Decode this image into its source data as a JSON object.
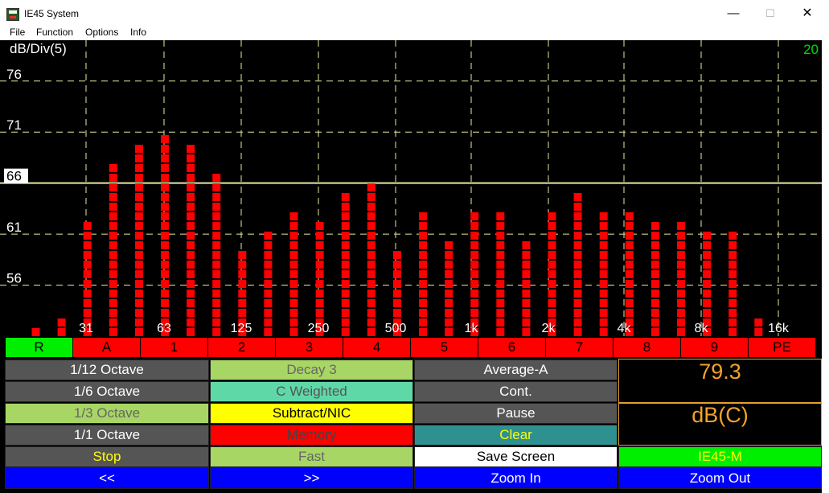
{
  "window": {
    "title": "IE45 System",
    "minimize": "—",
    "maximize": "☐",
    "close": "✕"
  },
  "menu": [
    "File",
    "Function",
    "Options",
    "Info"
  ],
  "chart_data": {
    "type": "bar",
    "ylabel": "dB/Div(5)",
    "range_label": "20",
    "y_ticks": [
      56,
      61,
      66,
      71,
      76
    ],
    "ylim": [
      51,
      80
    ],
    "reference_level": 66,
    "x_tick_labels": [
      "31",
      "63",
      "125",
      "250",
      "500",
      "1k",
      "2k",
      "4k",
      "8k",
      "16k"
    ],
    "bands": [
      "25",
      "31.5",
      "40",
      "50",
      "63",
      "80",
      "100",
      "125",
      "160",
      "200",
      "250",
      "315",
      "400",
      "500",
      "630",
      "800",
      "1k",
      "1.25k",
      "1.6k",
      "2k",
      "2.5k",
      "3.15k",
      "4k",
      "5k",
      "6.3k",
      "8k",
      "10k",
      "12.5k",
      "16k"
    ],
    "values": [
      52,
      53.5,
      62.5,
      68.5,
      70,
      71,
      70,
      67.5,
      60,
      61.5,
      64,
      62.5,
      65.5,
      66.5,
      60,
      64,
      61,
      64,
      63.5,
      61,
      64,
      65.5,
      63.5,
      63.5,
      62.5,
      62.5,
      61.5,
      61.5,
      53.5
    ],
    "bar_color": "#ff0000",
    "grid_color": "#e8e8a0",
    "reference_color": "#e8e8a0",
    "range_color": "#00dd00",
    "grid": true
  },
  "lamps": [
    {
      "label": "R",
      "color": "#00ee00"
    },
    {
      "label": "A",
      "color": "#ff0000"
    },
    {
      "label": "1",
      "color": "#ff0000"
    },
    {
      "label": "2",
      "color": "#ff0000"
    },
    {
      "label": "3",
      "color": "#ff0000"
    },
    {
      "label": "4",
      "color": "#ff0000"
    },
    {
      "label": "5",
      "color": "#ff0000"
    },
    {
      "label": "6",
      "color": "#ff0000"
    },
    {
      "label": "7",
      "color": "#ff0000"
    },
    {
      "label": "8",
      "color": "#ff0000"
    },
    {
      "label": "9",
      "color": "#ff0000"
    },
    {
      "label": "PE",
      "color": "#ff0000"
    }
  ],
  "controls": [
    [
      {
        "label": "1/12 Octave",
        "bg": "#555555",
        "fg": "#ffffff"
      },
      {
        "label": "Decay 3",
        "bg": "#a8d664",
        "fg": "#666666"
      },
      {
        "label": "Average-A",
        "bg": "#555555",
        "fg": "#ffffff"
      }
    ],
    [
      {
        "label": "1/6 Octave",
        "bg": "#555555",
        "fg": "#ffffff"
      },
      {
        "label": "C Weighted",
        "bg": "#5fd8a8",
        "fg": "#555555"
      },
      {
        "label": "Cont.",
        "bg": "#555555",
        "fg": "#ffffff"
      }
    ],
    [
      {
        "label": "1/3 Octave",
        "bg": "#a8d664",
        "fg": "#666666"
      },
      {
        "label": "Subtract/NIC",
        "bg": "#ffff00",
        "fg": "#000000"
      },
      {
        "label": "Pause",
        "bg": "#555555",
        "fg": "#ffffff"
      }
    ],
    [
      {
        "label": "1/1 Octave",
        "bg": "#555555",
        "fg": "#ffffff"
      },
      {
        "label": "Memory",
        "bg": "#ff0000",
        "fg": "#444444"
      },
      {
        "label": "Clear",
        "bg": "#2f9090",
        "fg": "#ffff00"
      }
    ],
    [
      {
        "label": "Stop",
        "bg": "#555555",
        "fg": "#ffff00"
      },
      {
        "label": "Fast",
        "bg": "#a8d664",
        "fg": "#666666"
      },
      {
        "label": "Save Screen",
        "bg": "#ffffff",
        "fg": "#000000"
      },
      {
        "label": "IE45-M",
        "bg": "#00ee00",
        "fg": "#ffff00"
      }
    ],
    [
      {
        "label": "<<",
        "bg": "#0000ff",
        "fg": "#ffffff"
      },
      {
        "label": ">>",
        "bg": "#0000ff",
        "fg": "#ffffff"
      },
      {
        "label": "Zoom In",
        "bg": "#0000ff",
        "fg": "#ffffff"
      },
      {
        "label": "Zoom Out",
        "bg": "#0000ff",
        "fg": "#ffffff"
      }
    ]
  ],
  "readout": {
    "value": "79.3",
    "unit": "dB(C)"
  }
}
